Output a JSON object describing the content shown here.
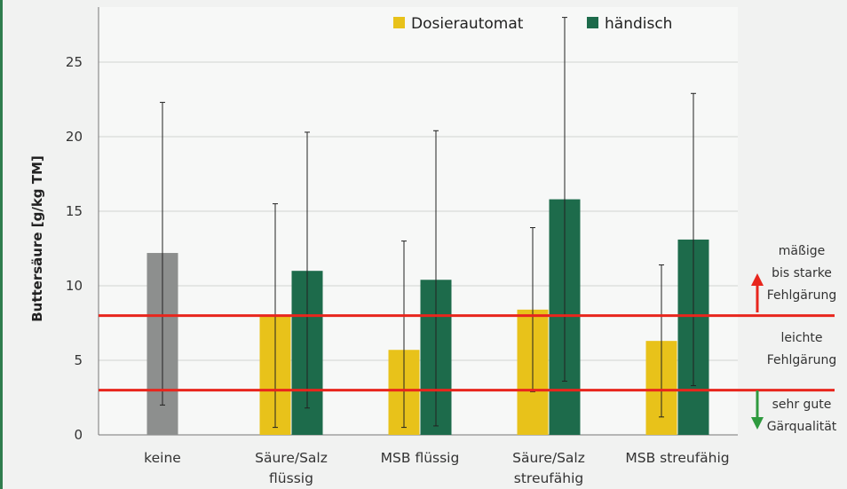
{
  "chart_data": {
    "type": "bar",
    "ylabel": "Buttersäure [g/kg TM]",
    "ylim": [
      0,
      28
    ],
    "yticks": [
      0,
      5,
      10,
      15,
      20,
      25
    ],
    "grid": true,
    "legend_position": "top-center",
    "categories": [
      [
        "keine"
      ],
      [
        "Säure/Salz",
        "flüssig"
      ],
      [
        "MSB flüssig"
      ],
      [
        "Säure/Salz",
        "streufähig"
      ],
      [
        "MSB streufähig"
      ]
    ],
    "series": [
      {
        "name": "Dosierautomat",
        "color": "#e8c21a",
        "values": [
          null,
          8.0,
          5.7,
          8.4,
          6.3
        ],
        "error_low": [
          null,
          0.5,
          0.5,
          2.9,
          1.2
        ],
        "error_high": [
          null,
          15.5,
          13.0,
          13.9,
          11.4
        ]
      },
      {
        "name": "händisch",
        "color": "#1d6b4b",
        "values": [
          null,
          11.0,
          10.4,
          15.8,
          13.1
        ],
        "error_low": [
          null,
          1.8,
          0.6,
          3.6,
          3.3
        ],
        "error_high": [
          null,
          20.3,
          20.4,
          28.0,
          22.9
        ]
      }
    ],
    "unassigned_bars": [
      {
        "category_index": 0,
        "color": "#8d8f8e",
        "value": 12.2,
        "error_low": 2.0,
        "error_high": 22.3
      }
    ],
    "reference_lines": [
      {
        "value": 8,
        "color": "#e8261d"
      },
      {
        "value": 3,
        "color": "#e8261d"
      }
    ],
    "annotations": [
      {
        "lines": [
          "mäßige",
          "bis starke",
          "Fehlgärung"
        ],
        "arrow": "up",
        "arrow_color": "#e8261d"
      },
      {
        "lines": [
          "leichte",
          "Fehlgärung"
        ],
        "arrow": "none"
      },
      {
        "lines": [
          "sehr gute",
          "Gärqualität"
        ],
        "arrow": "down",
        "arrow_color": "#2e9a3e"
      }
    ]
  }
}
